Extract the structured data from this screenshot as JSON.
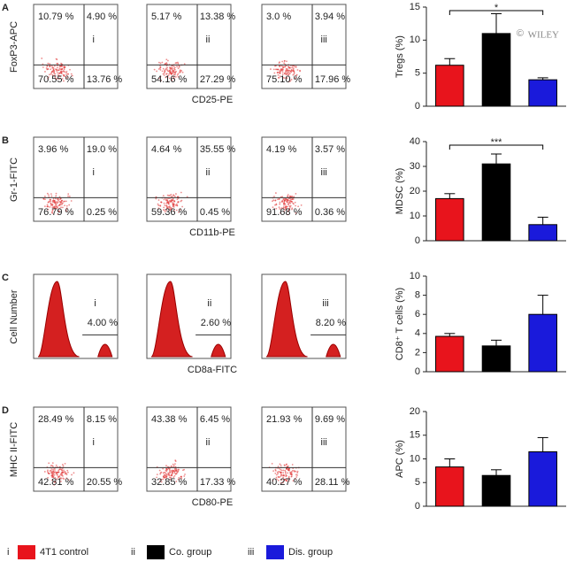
{
  "watermark_symbol": "©",
  "watermark": "WILEY",
  "flow_rows": [
    {
      "letter": "A",
      "y_label": "FoxP3-APC",
      "x_label": "CD25-PE",
      "kind": "scatter",
      "plots": [
        {
          "roman": "i",
          "ul": "10.79 %",
          "ur": "4.90 %",
          "ll": "70.55 %",
          "lr": "13.76 %"
        },
        {
          "roman": "ii",
          "ul": "5.17 %",
          "ur": "13.38 %",
          "ll": "54.16 %",
          "lr": "27.29 %"
        },
        {
          "roman": "iii",
          "ul": "3.0 %",
          "ur": "3.94 %",
          "ll": "75.10 %",
          "lr": "17.96 %"
        }
      ]
    },
    {
      "letter": "B",
      "y_label": "Gr-1-FITC",
      "x_label": "CD11b-PE",
      "kind": "scatter",
      "plots": [
        {
          "roman": "i",
          "ul": "3.96 %",
          "ur": "19.0 %",
          "ll": "76.79 %",
          "lr": "0.25 %"
        },
        {
          "roman": "ii",
          "ul": "4.64 %",
          "ur": "35.55 %",
          "ll": "59.36 %",
          "lr": "0.45 %"
        },
        {
          "roman": "iii",
          "ul": "4.19 %",
          "ur": "3.57 %",
          "ll": "91.68 %",
          "lr": "0.36 %"
        }
      ]
    },
    {
      "letter": "C",
      "y_label": "Cell Number",
      "x_label": "CD8a-FITC",
      "kind": "histogram",
      "plots": [
        {
          "roman": "i",
          "gate": "4.00 %"
        },
        {
          "roman": "ii",
          "gate": "2.60 %"
        },
        {
          "roman": "iii",
          "gate": "8.20 %"
        }
      ]
    },
    {
      "letter": "D",
      "y_label": "MHC II-FITC",
      "x_label": "CD80-PE",
      "kind": "scatter",
      "plots": [
        {
          "roman": "i",
          "ul": "28.49 %",
          "ur": "8.15 %",
          "ll": "42.81 %",
          "lr": "20.55 %"
        },
        {
          "roman": "ii",
          "ul": "43.38 %",
          "ur": "6.45 %",
          "ll": "32.85 %",
          "lr": "17.33 %"
        },
        {
          "roman": "iii",
          "ul": "21.93 %",
          "ur": "9.69 %",
          "ll": "40.27 %",
          "lr": "28.11 %"
        }
      ]
    }
  ],
  "chart_data": [
    {
      "type": "bar",
      "y_label": "Tregs (%)",
      "categories": [
        null,
        null,
        null
      ],
      "values": [
        6.2,
        11,
        4
      ],
      "errors": [
        1,
        3,
        0.3
      ],
      "colors": [
        "#e8141c",
        "#000000",
        "#1a1adb"
      ],
      "ylim": [
        0,
        15
      ],
      "yticks": [
        0,
        5,
        10,
        15
      ],
      "significance": "*"
    },
    {
      "type": "bar",
      "y_label": "MDSC  (%)",
      "categories": [
        null,
        null,
        null
      ],
      "values": [
        17,
        31,
        6.5
      ],
      "errors": [
        2,
        4,
        3
      ],
      "colors": [
        "#e8141c",
        "#000000",
        "#1a1adb"
      ],
      "ylim": [
        0,
        40
      ],
      "yticks": [
        0,
        10,
        20,
        30,
        40
      ],
      "significance": "***"
    },
    {
      "type": "bar",
      "y_label": "CD8⁺ T cells  (%)",
      "categories": [
        null,
        null,
        null
      ],
      "values": [
        3.7,
        2.7,
        6
      ],
      "errors": [
        0.3,
        0.6,
        2
      ],
      "colors": [
        "#e8141c",
        "#000000",
        "#1a1adb"
      ],
      "ylim": [
        0,
        10
      ],
      "yticks": [
        0,
        2,
        4,
        6,
        8,
        10
      ]
    },
    {
      "type": "bar",
      "y_label": "APC  (%)",
      "categories": [
        null,
        null,
        null
      ],
      "values": [
        8.3,
        6.5,
        11.5
      ],
      "errors": [
        1.7,
        1.2,
        3
      ],
      "colors": [
        "#e8141c",
        "#000000",
        "#1a1adb"
      ],
      "ylim": [
        0,
        20
      ],
      "yticks": [
        0,
        5,
        10,
        15,
        20
      ]
    }
  ],
  "legend": [
    {
      "numeral": "i",
      "label": "4T1 control",
      "color": "#e8141c"
    },
    {
      "numeral": "ii",
      "label": "Co. group",
      "color": "#000000"
    },
    {
      "numeral": "iii",
      "label": "Dis. group",
      "color": "#1a1adb"
    }
  ]
}
